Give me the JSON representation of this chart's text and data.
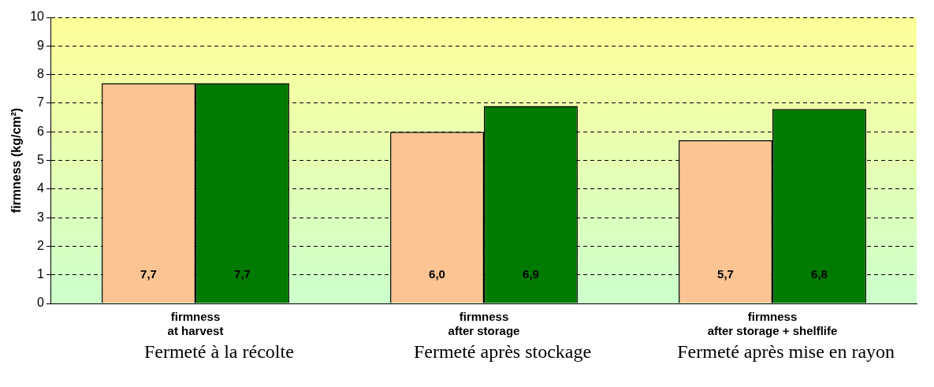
{
  "chart_data": {
    "type": "bar",
    "ylabel": "firmness (kg/cm²)",
    "categories": [
      "firmness\nat harvest",
      "firmness\nafter storage",
      "firmness\nafter storage + shelflife"
    ],
    "series": [
      {
        "color": "#fcc493",
        "values": [
          7.7,
          6.0,
          5.7
        ],
        "value_labels": [
          "7,7",
          "6,0",
          "5,7"
        ]
      },
      {
        "color": "#007a00",
        "values": [
          7.7,
          6.9,
          6.8
        ],
        "value_labels": [
          "7,7",
          "6,9",
          "6,8"
        ]
      }
    ],
    "ylim": [
      0,
      10
    ],
    "yticks": [
      0,
      1,
      2,
      3,
      4,
      5,
      6,
      7,
      8,
      9,
      10
    ],
    "grid": "y",
    "legend": false,
    "annotations": [
      "Fermeté à la récolte",
      "Fermeté après stockage",
      "Fermeté après mise en rayon"
    ]
  }
}
